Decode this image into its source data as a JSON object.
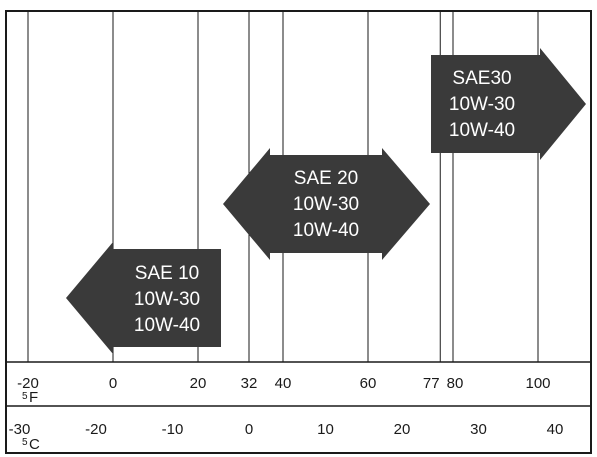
{
  "diagram": {
    "fahrenheit_scale": {
      "unit_label": "F",
      "degree_mark": "5",
      "ticks": [
        {
          "label": "-20",
          "value": -20
        },
        {
          "label": "0",
          "value": 0
        },
        {
          "label": "20",
          "value": 20
        },
        {
          "label": "32",
          "value": 32
        },
        {
          "label": "40",
          "value": 40
        },
        {
          "label": "60",
          "value": 60
        },
        {
          "label": "77",
          "value": 77
        },
        {
          "label": "80",
          "value": 80
        },
        {
          "label": "100",
          "value": 100
        }
      ]
    },
    "celsius_scale": {
      "unit_label": "C",
      "degree_mark": "5",
      "ticks": [
        {
          "label": "-30",
          "value": -30
        },
        {
          "label": "-20",
          "value": -20
        },
        {
          "label": "-10",
          "value": -10
        },
        {
          "label": "0",
          "value": 0
        },
        {
          "label": "10",
          "value": 10
        },
        {
          "label": "20",
          "value": 20
        },
        {
          "label": "30",
          "value": 30
        },
        {
          "label": "40",
          "value": 40
        }
      ]
    },
    "oil_bands": [
      {
        "lines": [
          "SAE 10",
          "10W-30",
          "10W-40"
        ],
        "from_f": null,
        "to_f": 32,
        "open_end": "left"
      },
      {
        "lines": [
          "SAE 20",
          "10W-30",
          "10W-40"
        ],
        "from_f": 32,
        "to_f": 77,
        "open_end": "both"
      },
      {
        "lines": [
          "SAE30",
          "10W-30",
          "10W-40"
        ],
        "from_f": 77,
        "to_f": null,
        "open_end": "right"
      }
    ],
    "colors": {
      "band_fill": "#3a3a3a",
      "band_text": "#ffffff",
      "line": "#1a1a1a",
      "background": "#ffffff"
    }
  }
}
